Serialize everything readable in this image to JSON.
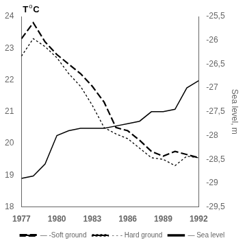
{
  "chart_data": {
    "type": "line",
    "annotations": [
      "T",
      "o",
      "C"
    ],
    "y2_label": "Sea level, m",
    "x": [
      1977,
      1978,
      1979,
      1980,
      1981,
      1982,
      1983,
      1984,
      1985,
      1986,
      1987,
      1988,
      1989,
      1990,
      1991,
      1992
    ],
    "series": [
      {
        "name": "— -Soft ground",
        "color": "#000000",
        "line_style": "long_dash",
        "values": [
          23.3,
          23.8,
          23.2,
          22.8,
          22.5,
          22.2,
          21.8,
          21.3,
          20.5,
          20.4,
          20.1,
          19.75,
          19.6,
          19.75,
          19.65,
          19.55
        ]
      },
      {
        "name": "- - - Hard ground",
        "color": "#000000",
        "line_style": "short_dash",
        "values": [
          22.75,
          23.3,
          23.05,
          22.7,
          22.2,
          21.8,
          21.2,
          20.5,
          20.3,
          20.15,
          19.85,
          19.55,
          19.5,
          19.3,
          19.6,
          19.55
        ]
      },
      {
        "name": "— Sea level",
        "color": "#000000",
        "line_style": "solid",
        "axis": "y2",
        "values": [
          -28.9,
          -28.85,
          -28.6,
          -28.0,
          -27.9,
          -27.85,
          -27.85,
          -27.85,
          -27.8,
          -27.75,
          -27.7,
          -27.5,
          -27.5,
          -27.45,
          -27.0,
          -26.85
        ]
      }
    ],
    "xlim": [
      1977,
      1992
    ],
    "xticks": [
      1977,
      1980,
      1983,
      1986,
      1989,
      1992
    ],
    "ylim": [
      18,
      24
    ],
    "yticks": [
      18,
      19,
      20,
      21,
      22,
      23,
      24
    ],
    "y2lim": [
      -29.5,
      -25.5
    ],
    "y2ticks": [
      {
        "value": -29.5,
        "label": "-29,5"
      },
      -29,
      {
        "value": -28.5,
        "label": "-28,5"
      },
      -28,
      {
        "value": -27.5,
        "label": "-27,5"
      },
      -27,
      {
        "value": -26.5,
        "label": "-26,5"
      },
      -26,
      {
        "value": -25.5,
        "label": "-25,5"
      }
    ],
    "grid": false,
    "legend": "bottom"
  }
}
